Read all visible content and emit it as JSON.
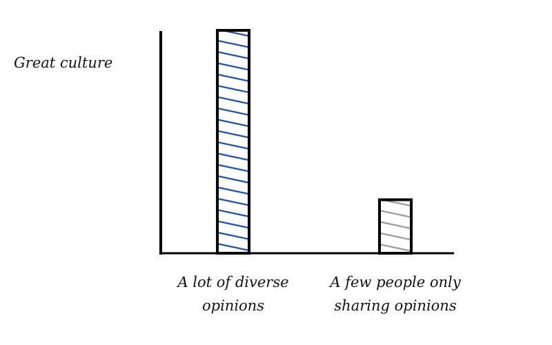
{
  "chart_data": {
    "type": "bar",
    "y_label": "Great culture",
    "categories": [
      "A lot of diverse opinions",
      "A few people only sharing opinions"
    ],
    "values": [
      100,
      24
    ],
    "colors": [
      "#1a4da0",
      "#999999"
    ],
    "ylim": [
      0,
      100
    ]
  }
}
